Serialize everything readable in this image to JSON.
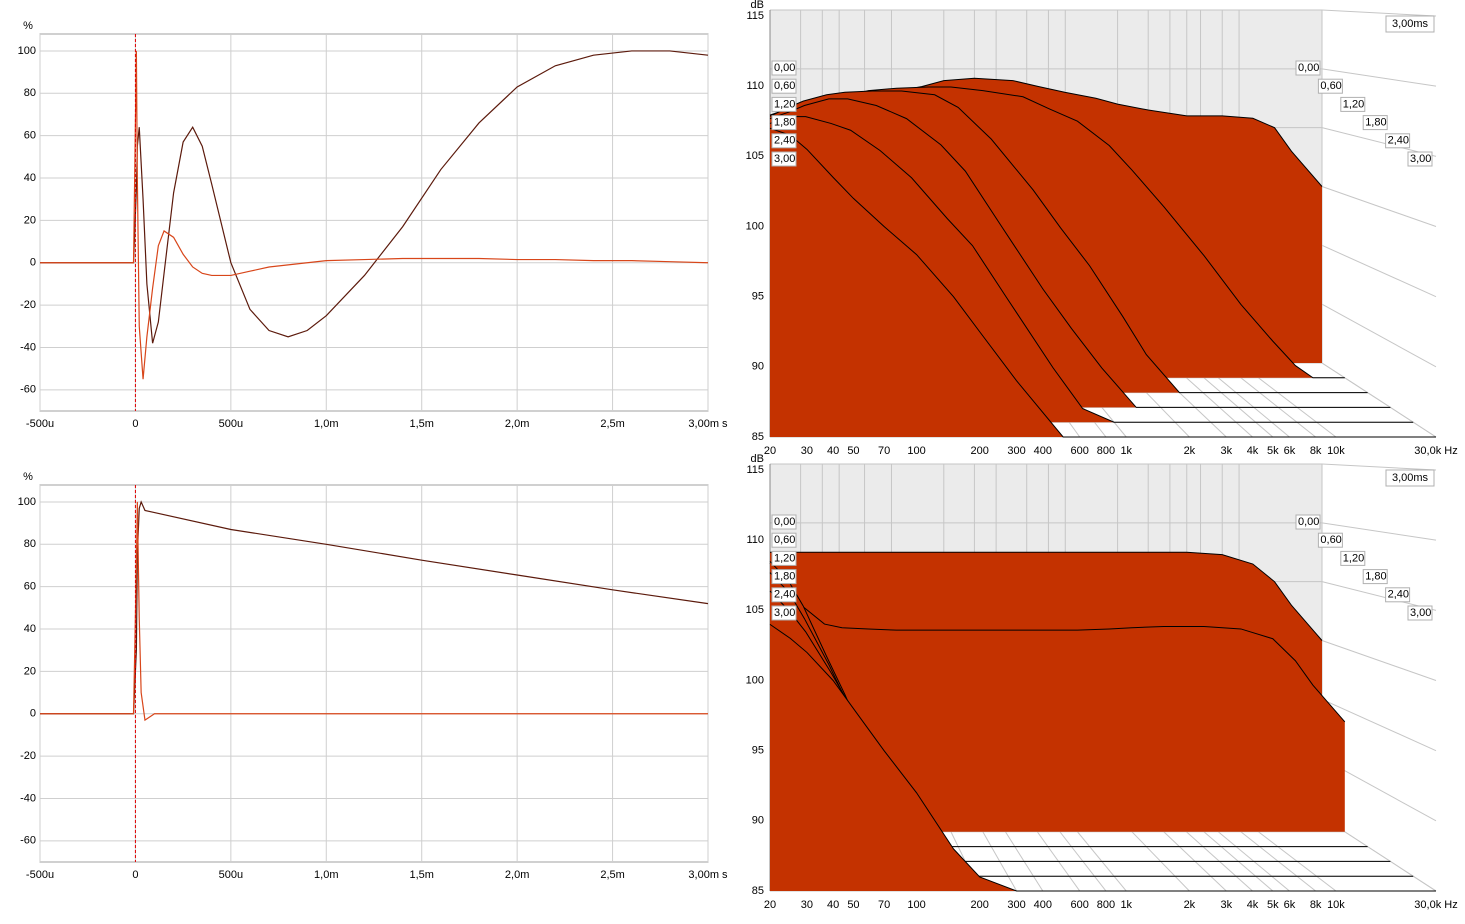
{
  "chart_data": [
    {
      "type": "line",
      "y_label": "%",
      "x": [
        -0.0005,
        -1e-05,
        5e-06,
        1e-05,
        2e-05,
        4e-05,
        6e-05,
        9e-05,
        0.00012,
        0.00015,
        0.0002,
        0.00025,
        0.0003,
        0.00035,
        0.0004,
        0.0005,
        0.0006,
        0.0007,
        0.0008,
        0.0009,
        0.001,
        0.0012,
        0.0014,
        0.0016,
        0.0018,
        0.002,
        0.0022,
        0.0024,
        0.0026,
        0.0028,
        0.003
      ],
      "series": [
        {
          "color": "#5c1a0c",
          "values": [
            0,
            0,
            35,
            55,
            64,
            30,
            -10,
            -38,
            -28,
            -5,
            33,
            57,
            64,
            55,
            37,
            0,
            -22,
            -32,
            -35,
            -32,
            -25,
            -6,
            17,
            44,
            66,
            83,
            93,
            98,
            100,
            100,
            98
          ]
        },
        {
          "color": "#d8461a",
          "values": [
            0,
            0,
            100,
            40,
            -30,
            -55,
            -35,
            -12,
            8,
            15,
            12,
            4,
            -2,
            -5,
            -6,
            -6,
            -4,
            -2,
            -1,
            0,
            1,
            1.5,
            2,
            2,
            2,
            1.5,
            1.5,
            1,
            1,
            0.5,
            0
          ]
        }
      ],
      "xlim": [
        -0.0005,
        0.003
      ],
      "ylim": [
        -70,
        108
      ],
      "xticks": [
        {
          "value": -0.0005,
          "label": "-500u"
        },
        0,
        {
          "value": 0.0005,
          "label": "500u"
        },
        {
          "value": 0.001,
          "label": "1,0m"
        },
        {
          "value": 0.0015,
          "label": "1,5m"
        },
        {
          "value": 0.002,
          "label": "2,0m"
        },
        {
          "value": 0.0025,
          "label": "2,5m"
        },
        {
          "value": 0.003,
          "label": "3,00m s"
        }
      ],
      "yticks": [
        -60,
        -40,
        -20,
        0,
        20,
        40,
        60,
        80,
        100
      ],
      "grid": true
    },
    {
      "type": "line",
      "y_label": "%",
      "x": [
        -0.0005,
        -1e-05,
        5e-06,
        1e-05,
        2e-05,
        3e-05,
        5e-05,
        0.0001,
        0.0005,
        0.001,
        0.0015,
        0.002,
        0.0025,
        0.003
      ],
      "series": [
        {
          "color": "#5c1a0c",
          "values": [
            0,
            0,
            30,
            75,
            97,
            100,
            96,
            95,
            87,
            80,
            72.5,
            65.5,
            58.5,
            52
          ]
        },
        {
          "color": "#d8461a",
          "values": [
            0,
            0,
            70,
            100,
            45,
            10,
            -3,
            0,
            0,
            0,
            0,
            0,
            0,
            0
          ]
        }
      ],
      "xlim": [
        -0.0005,
        0.003
      ],
      "ylim": [
        -70,
        108
      ],
      "xticks": [
        {
          "value": -0.0005,
          "label": "-500u"
        },
        0,
        {
          "value": 0.0005,
          "label": "500u"
        },
        {
          "value": 0.001,
          "label": "1,0m"
        },
        {
          "value": 0.0015,
          "label": "1,5m"
        },
        {
          "value": 0.002,
          "label": "2,0m"
        },
        {
          "value": 0.0025,
          "label": "2,5m"
        },
        {
          "value": 0.003,
          "label": "3,00m s"
        }
      ],
      "yticks": [
        -60,
        -40,
        -20,
        0,
        20,
        40,
        60,
        80,
        100
      ],
      "grid": true
    },
    {
      "type": "waterfall",
      "y_label": "dB",
      "time_label": "3,00ms",
      "color": "#c43200",
      "xscale": "log",
      "x": [
        20,
        25,
        30,
        40,
        50,
        70,
        100,
        150,
        200,
        300,
        500,
        700,
        1000,
        1500,
        2000,
        3000,
        5000,
        8000,
        12000,
        16000,
        20000,
        30000
      ],
      "series": [
        {
          "time": 0,
          "values": [
            106,
            106,
            106,
            106.5,
            107,
            107.5,
            108,
            108.5,
            109,
            109.2,
            109,
            108.5,
            108,
            107.5,
            107,
            106.5,
            106,
            106,
            105.8,
            105,
            103,
            100
          ]
        },
        {
          "time": 0.6,
          "values": [
            106.5,
            107,
            107.5,
            108,
            108,
            108.5,
            108.7,
            108.8,
            108.8,
            108.5,
            108,
            107,
            106,
            104,
            102,
            99,
            95,
            91,
            88,
            86,
            85,
            85
          ]
        },
        {
          "time": 1.2,
          "values": [
            106.8,
            107.5,
            108,
            108.5,
            108.7,
            108.8,
            108.8,
            108.5,
            107.5,
            105,
            101,
            98,
            95,
            91,
            88,
            85,
            85,
            85,
            85,
            85,
            85,
            85
          ]
        },
        {
          "time": 1.8,
          "values": [
            107,
            107.5,
            108,
            108.5,
            108.5,
            108,
            107,
            105,
            103,
            99,
            94,
            91,
            88,
            85,
            85,
            85,
            85,
            85,
            85,
            85,
            85,
            85
          ]
        },
        {
          "time": 2.4,
          "values": [
            107,
            107.5,
            107.5,
            107,
            106.5,
            105,
            103,
            100,
            98,
            94,
            89,
            86,
            85,
            85,
            85,
            85,
            85,
            85,
            85,
            85,
            85,
            85
          ]
        },
        {
          "time": 3,
          "values": [
            107,
            106.5,
            105.5,
            103.5,
            102,
            100,
            98,
            95,
            92.5,
            89,
            85,
            85,
            85,
            85,
            85,
            85,
            85,
            85,
            85,
            85,
            85,
            85
          ]
        }
      ],
      "xlim": [
        20,
        30000
      ],
      "ylim": [
        85,
        115
      ],
      "zlim": [
        0,
        3
      ],
      "xticks": [
        20,
        30,
        40,
        50,
        70,
        100,
        200,
        300,
        400,
        600,
        800,
        {
          "value": 1000,
          "label": "1k"
        },
        {
          "value": 2000,
          "label": "2k"
        },
        {
          "value": 3000,
          "label": "3k"
        },
        {
          "value": 4000,
          "label": "4k"
        },
        {
          "value": 5000,
          "label": "5k"
        },
        {
          "value": 6000,
          "label": "6k"
        },
        {
          "value": 8000,
          "label": "8k"
        },
        {
          "value": 10000,
          "label": "10k"
        },
        {
          "value": 30000,
          "label": "30,0k Hz"
        }
      ],
      "yticks": [
        85,
        90,
        95,
        100,
        105,
        110,
        115
      ],
      "zticks": [
        {
          "value": 0,
          "label": "0,00"
        },
        {
          "value": 0.6,
          "label": "0,60"
        },
        {
          "value": 1.2,
          "label": "1,20"
        },
        {
          "value": 1.8,
          "label": "1,80"
        },
        {
          "value": 2.4,
          "label": "2,40"
        },
        {
          "value": 3,
          "label": "3,00"
        }
      ],
      "grid": true
    },
    {
      "type": "waterfall",
      "y_label": "dB",
      "time_label": "3,00ms",
      "color": "#c43200",
      "xscale": "log",
      "x": [
        20,
        25,
        30,
        40,
        50,
        70,
        100,
        150,
        200,
        300,
        500,
        700,
        1000,
        1500,
        2000,
        3000,
        5000,
        8000,
        12000,
        16000,
        20000,
        30000
      ],
      "series": [
        {
          "time": 0,
          "values": [
            107.5,
            107.5,
            107.5,
            107.5,
            107.5,
            107.5,
            107.5,
            107.5,
            107.5,
            107.5,
            107.5,
            107.5,
            107.5,
            107.5,
            107.5,
            107.5,
            107.5,
            107.3,
            106.5,
            105,
            103,
            100
          ]
        },
        {
          "time": 0.6,
          "values": [
            107,
            105,
            103.5,
            102,
            101.7,
            101.6,
            101.5,
            101.5,
            101.5,
            101.5,
            101.5,
            101.5,
            101.5,
            101.6,
            101.7,
            101.8,
            101.8,
            101.6,
            100.8,
            99,
            97,
            94
          ]
        },
        {
          "time": 1.2,
          "values": [
            107.5,
            106,
            104,
            100,
            97,
            92,
            87,
            85,
            85,
            85,
            85,
            85,
            85,
            85,
            85,
            85,
            85,
            85,
            85,
            85,
            85,
            85
          ]
        },
        {
          "time": 1.8,
          "values": [
            107,
            105.5,
            103.5,
            100,
            97,
            92.5,
            88,
            85,
            85,
            85,
            85,
            85,
            85,
            85,
            85,
            85,
            85,
            85,
            85,
            85,
            85,
            85
          ]
        },
        {
          "time": 2.4,
          "values": [
            106,
            104.5,
            103,
            100,
            97.5,
            93,
            89,
            85,
            85,
            85,
            85,
            85,
            85,
            85,
            85,
            85,
            85,
            85,
            85,
            85,
            85,
            85
          ]
        },
        {
          "time": 3,
          "values": [
            104,
            103,
            102,
            100,
            98,
            95,
            92,
            88,
            86,
            85,
            85,
            85,
            85,
            85,
            85,
            85,
            85,
            85,
            85,
            85,
            85,
            85
          ]
        }
      ],
      "xlim": [
        20,
        30000
      ],
      "ylim": [
        85,
        115
      ],
      "zlim": [
        0,
        3
      ],
      "xticks": [
        20,
        30,
        40,
        50,
        70,
        100,
        200,
        300,
        400,
        600,
        800,
        {
          "value": 1000,
          "label": "1k"
        },
        {
          "value": 2000,
          "label": "2k"
        },
        {
          "value": 3000,
          "label": "3k"
        },
        {
          "value": 4000,
          "label": "4k"
        },
        {
          "value": 5000,
          "label": "5k"
        },
        {
          "value": 6000,
          "label": "6k"
        },
        {
          "value": 8000,
          "label": "8k"
        },
        {
          "value": 10000,
          "label": "10k"
        },
        {
          "value": 30000,
          "label": "30,0k Hz"
        }
      ],
      "yticks": [
        85,
        90,
        95,
        100,
        105,
        110,
        115
      ],
      "zticks": [
        {
          "value": 0,
          "label": "0,00"
        },
        {
          "value": 0.6,
          "label": "0,60"
        },
        {
          "value": 1.2,
          "label": "1,20"
        },
        {
          "value": 1.8,
          "label": "1,80"
        },
        {
          "value": 2.4,
          "label": "2,40"
        },
        {
          "value": 3,
          "label": "3,00"
        }
      ],
      "grid": true
    }
  ]
}
